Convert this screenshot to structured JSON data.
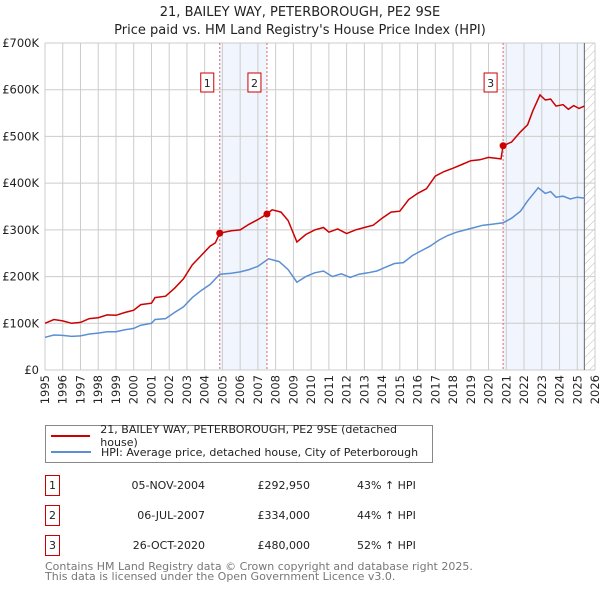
{
  "title": "21, BAILEY WAY, PETERBOROUGH, PE2 9SE",
  "subtitle": "Price paid vs. HM Land Registry's House Price Index (HPI)",
  "chart_data": {
    "type": "line",
    "title": "21, BAILEY WAY, PETERBOROUGH, PE2 9SE",
    "subtitle": "Price paid vs. HM Land Registry's House Price Index (HPI)",
    "xlim": [
      1995,
      2026
    ],
    "ylim": [
      0,
      700000
    ],
    "x_ticks": [
      "1995",
      "1996",
      "1997",
      "1998",
      "1999",
      "2000",
      "2001",
      "2002",
      "2003",
      "2004",
      "2005",
      "2006",
      "2007",
      "2008",
      "2009",
      "2010",
      "2011",
      "2012",
      "2013",
      "2014",
      "2015",
      "2016",
      "2017",
      "2018",
      "2019",
      "2020",
      "2021",
      "2022",
      "2023",
      "2024",
      "2025",
      "2026"
    ],
    "y_ticks": [
      {
        "v": 0,
        "label": "£0"
      },
      {
        "v": 100000,
        "label": "£100K"
      },
      {
        "v": 200000,
        "label": "£200K"
      },
      {
        "v": 300000,
        "label": "£300K"
      },
      {
        "v": 400000,
        "label": "£400K"
      },
      {
        "v": 500000,
        "label": "£500K"
      },
      {
        "v": 600000,
        "label": "£600K"
      },
      {
        "v": 700000,
        "label": "£700K"
      }
    ],
    "grid": true,
    "data_end": 2025.4,
    "shaded_ranges": [
      [
        2004.85,
        2007.51
      ],
      [
        2020.82,
        2025.4
      ]
    ],
    "series": [
      {
        "name": "21, BAILEY WAY, PETERBOROUGH, PE2 9SE (detached house)",
        "color": "#cc0000",
        "points": [
          [
            1995,
            100000
          ],
          [
            1995.5,
            108000
          ],
          [
            1996,
            105000
          ],
          [
            1996.5,
            100000
          ],
          [
            1997,
            102000
          ],
          [
            1997.5,
            110000
          ],
          [
            1998,
            112000
          ],
          [
            1998.5,
            118000
          ],
          [
            1999,
            117000
          ],
          [
            1999.5,
            123000
          ],
          [
            2000,
            128000
          ],
          [
            2000.4,
            140000
          ],
          [
            2001,
            143000
          ],
          [
            2001.2,
            155000
          ],
          [
            2001.8,
            158000
          ],
          [
            2002.3,
            175000
          ],
          [
            2002.8,
            195000
          ],
          [
            2003.3,
            225000
          ],
          [
            2003.8,
            245000
          ],
          [
            2004.3,
            265000
          ],
          [
            2004.6,
            272000
          ],
          [
            2004.85,
            292950
          ],
          [
            2005.5,
            298000
          ],
          [
            2006,
            300000
          ],
          [
            2006.5,
            312000
          ],
          [
            2007,
            322000
          ],
          [
            2007.51,
            334000
          ],
          [
            2007.8,
            343000
          ],
          [
            2008.3,
            338000
          ],
          [
            2008.7,
            320000
          ],
          [
            2009.2,
            274000
          ],
          [
            2009.7,
            290000
          ],
          [
            2010.2,
            300000
          ],
          [
            2010.7,
            305000
          ],
          [
            2011,
            295000
          ],
          [
            2011.5,
            302000
          ],
          [
            2012,
            292000
          ],
          [
            2012.5,
            300000
          ],
          [
            2013,
            305000
          ],
          [
            2013.5,
            310000
          ],
          [
            2014,
            325000
          ],
          [
            2014.5,
            338000
          ],
          [
            2015,
            340000
          ],
          [
            2015.5,
            365000
          ],
          [
            2016,
            378000
          ],
          [
            2016.5,
            388000
          ],
          [
            2017,
            415000
          ],
          [
            2017.5,
            425000
          ],
          [
            2018,
            432000
          ],
          [
            2018.5,
            440000
          ],
          [
            2019,
            448000
          ],
          [
            2019.5,
            450000
          ],
          [
            2020,
            455000
          ],
          [
            2020.7,
            452000
          ],
          [
            2020.82,
            480000
          ],
          [
            2021.3,
            488000
          ],
          [
            2021.8,
            510000
          ],
          [
            2022.2,
            525000
          ],
          [
            2022.5,
            555000
          ],
          [
            2022.9,
            589000
          ],
          [
            2023.2,
            578000
          ],
          [
            2023.5,
            580000
          ],
          [
            2023.8,
            565000
          ],
          [
            2024.2,
            568000
          ],
          [
            2024.5,
            558000
          ],
          [
            2024.8,
            566000
          ],
          [
            2025.1,
            560000
          ],
          [
            2025.4,
            565000
          ]
        ]
      },
      {
        "name": "HPI: Average price, detached house, City of Peterborough",
        "color": "#5b8fd4",
        "points": [
          [
            1995,
            70000
          ],
          [
            1995.5,
            75000
          ],
          [
            1996,
            74000
          ],
          [
            1996.5,
            72000
          ],
          [
            1997,
            73000
          ],
          [
            1997.5,
            77000
          ],
          [
            1998,
            79000
          ],
          [
            1998.5,
            82000
          ],
          [
            1999,
            82000
          ],
          [
            1999.5,
            86000
          ],
          [
            2000,
            89000
          ],
          [
            2000.4,
            96000
          ],
          [
            2001,
            100000
          ],
          [
            2001.2,
            108000
          ],
          [
            2001.8,
            110000
          ],
          [
            2002.3,
            123000
          ],
          [
            2002.8,
            135000
          ],
          [
            2003.3,
            155000
          ],
          [
            2003.8,
            170000
          ],
          [
            2004.3,
            183000
          ],
          [
            2004.85,
            205000
          ],
          [
            2005.5,
            207000
          ],
          [
            2006,
            210000
          ],
          [
            2006.5,
            215000
          ],
          [
            2007,
            222000
          ],
          [
            2007.6,
            238000
          ],
          [
            2008.2,
            232000
          ],
          [
            2008.7,
            215000
          ],
          [
            2009.2,
            188000
          ],
          [
            2009.7,
            200000
          ],
          [
            2010.2,
            208000
          ],
          [
            2010.7,
            212000
          ],
          [
            2011.2,
            200000
          ],
          [
            2011.7,
            206000
          ],
          [
            2012.2,
            198000
          ],
          [
            2012.7,
            205000
          ],
          [
            2013.2,
            208000
          ],
          [
            2013.7,
            212000
          ],
          [
            2014.2,
            220000
          ],
          [
            2014.7,
            228000
          ],
          [
            2015.2,
            230000
          ],
          [
            2015.7,
            245000
          ],
          [
            2016.2,
            255000
          ],
          [
            2016.7,
            265000
          ],
          [
            2017.2,
            278000
          ],
          [
            2017.7,
            288000
          ],
          [
            2018.2,
            295000
          ],
          [
            2018.7,
            300000
          ],
          [
            2019.2,
            305000
          ],
          [
            2019.7,
            310000
          ],
          [
            2020.2,
            312000
          ],
          [
            2020.82,
            315000
          ],
          [
            2021.3,
            325000
          ],
          [
            2021.8,
            340000
          ],
          [
            2022.2,
            362000
          ],
          [
            2022.8,
            390000
          ],
          [
            2023.2,
            378000
          ],
          [
            2023.5,
            382000
          ],
          [
            2023.8,
            370000
          ],
          [
            2024.2,
            372000
          ],
          [
            2024.6,
            366000
          ],
          [
            2025,
            370000
          ],
          [
            2025.4,
            368000
          ]
        ]
      }
    ],
    "sales": [
      {
        "n": "1",
        "x": 2004.85,
        "price": 292950
      },
      {
        "n": "2",
        "x": 2007.51,
        "price": 334000
      },
      {
        "n": "3",
        "x": 2020.82,
        "price": 480000
      }
    ]
  },
  "legend": {
    "property": "21, BAILEY WAY, PETERBOROUGH, PE2 9SE (detached house)",
    "hpi": "HPI: Average price, detached house, City of Peterborough"
  },
  "transactions": [
    {
      "n": "1",
      "date": "05-NOV-2004",
      "price": "£292,950",
      "hpi": "43% ↑ HPI"
    },
    {
      "n": "2",
      "date": "06-JUL-2007",
      "price": "£334,000",
      "hpi": "44% ↑ HPI"
    },
    {
      "n": "3",
      "date": "26-OCT-2020",
      "price": "£480,000",
      "hpi": "52% ↑ HPI"
    }
  ],
  "footer": {
    "line1": "Contains HM Land Registry data © Crown copyright and database right 2025.",
    "line2": "This data is licensed under the Open Government Licence v3.0."
  }
}
